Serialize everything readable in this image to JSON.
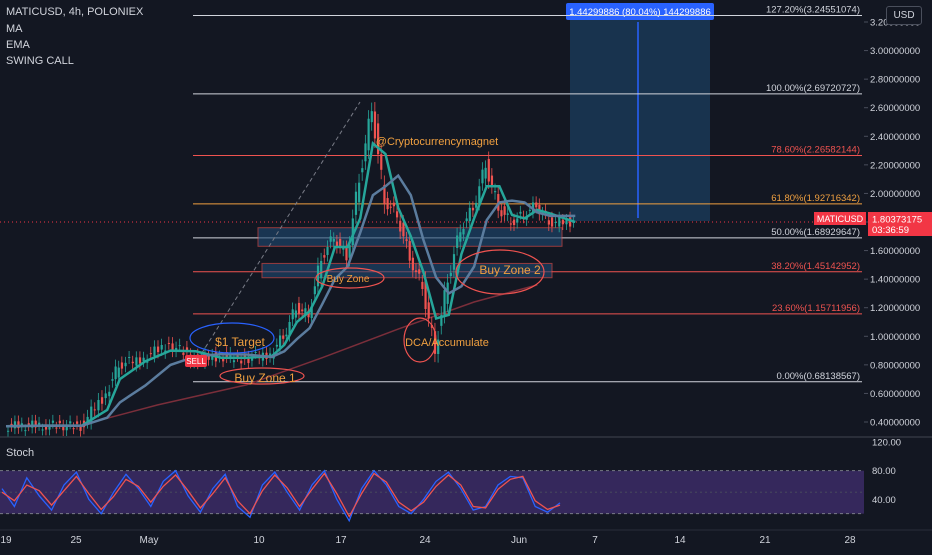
{
  "header": {
    "symbol_line": "MATICUSD, 4h, POLONIEX",
    "indicators": [
      "MA",
      "EMA",
      "SWING CALL"
    ]
  },
  "currency_button": "USD",
  "colors": {
    "background": "#131722",
    "up_candle": "#26a69a",
    "down_candle": "#ef5350",
    "ema_line": "#26a69a",
    "ma_line": "#5b7c9e",
    "long_ma": "#7a2e3a",
    "stoch_k": "#2962ff",
    "stoch_d": "#ef5350",
    "stoch_band": "#3a2a63",
    "fib_white": "#d1d4dc",
    "fib_red": "#ef5350",
    "fib_orange": "#f0a040",
    "zone_fill": "#1e4a73",
    "annotation": "#f0a040",
    "price_tag": "#f23645"
  },
  "chart_data": [
    {
      "type": "line",
      "title": "MATICUSD, 4h, POLONIEX",
      "ylabel": "USD",
      "scale": "linear",
      "ylim": [
        0.26,
        3.3
      ],
      "y_ticks": [
        "0.40000000",
        "0.60000000",
        "0.80000000",
        "1.00000000",
        "1.20000000",
        "1.40000000",
        "1.60000000",
        "1.80000000",
        "2.00000000",
        "2.20000000",
        "2.40000000",
        "2.60000000",
        "2.80000000",
        "3.00000000",
        "3.20000000"
      ],
      "x_ticks": [
        "19",
        "25",
        "May",
        "10",
        "17",
        "24",
        "Jun",
        "7",
        "14",
        "21",
        "28"
      ],
      "price_path": [
        {
          "x": "2021-04-19",
          "y": 0.37
        },
        {
          "x": "2021-04-22",
          "y": 0.38
        },
        {
          "x": "2021-04-25",
          "y": 0.37
        },
        {
          "x": "2021-04-27",
          "y": 0.6
        },
        {
          "x": "2021-04-28",
          "y": 0.8
        },
        {
          "x": "2021-04-30",
          "y": 0.85
        },
        {
          "x": "2021-05-02",
          "y": 0.95
        },
        {
          "x": "2021-05-04",
          "y": 0.84
        },
        {
          "x": "2021-05-06",
          "y": 0.86
        },
        {
          "x": "2021-05-08",
          "y": 0.84
        },
        {
          "x": "2021-05-10",
          "y": 0.88
        },
        {
          "x": "2021-05-11",
          "y": 1.0
        },
        {
          "x": "2021-05-12",
          "y": 1.2
        },
        {
          "x": "2021-05-13",
          "y": 1.15
        },
        {
          "x": "2021-05-14",
          "y": 1.55
        },
        {
          "x": "2021-05-15",
          "y": 1.7
        },
        {
          "x": "2021-05-16",
          "y": 1.55
        },
        {
          "x": "2021-05-17",
          "y": 2.1
        },
        {
          "x": "2021-05-18",
          "y": 2.6
        },
        {
          "x": "2021-05-19",
          "y": 1.95
        },
        {
          "x": "2021-05-20",
          "y": 1.85
        },
        {
          "x": "2021-05-21",
          "y": 1.55
        },
        {
          "x": "2021-05-22",
          "y": 1.35
        },
        {
          "x": "2021-05-23",
          "y": 0.9
        },
        {
          "x": "2021-05-24",
          "y": 1.4
        },
        {
          "x": "2021-05-25",
          "y": 1.75
        },
        {
          "x": "2021-05-26",
          "y": 1.9
        },
        {
          "x": "2021-05-27",
          "y": 2.2
        },
        {
          "x": "2021-05-28",
          "y": 1.9
        },
        {
          "x": "2021-05-29",
          "y": 1.8
        },
        {
          "x": "2021-05-30",
          "y": 1.85
        },
        {
          "x": "2021-05-31",
          "y": 1.92
        },
        {
          "x": "2021-06-01",
          "y": 1.8
        },
        {
          "x": "2021-06-03",
          "y": 1.8
        }
      ],
      "fib_levels": [
        {
          "ratio": "0.00%",
          "value": 0.68138567,
          "label": "0.00%(0.68138567)",
          "color": "#d1d4dc"
        },
        {
          "ratio": "23.60%",
          "value": 1.15711956,
          "label": "23.60%(1.15711956)",
          "color": "#ef5350"
        },
        {
          "ratio": "38.20%",
          "value": 1.45142952,
          "label": "38.20%(1.45142952)",
          "color": "#ef5350"
        },
        {
          "ratio": "50.00%",
          "value": 1.68929647,
          "label": "50.00%(1.68929647)",
          "color": "#d1d4dc"
        },
        {
          "ratio": "61.80%",
          "value": 1.92716342,
          "label": "61.80%(1.92716342)",
          "color": "#f0a040"
        },
        {
          "ratio": "78.60%",
          "value": 2.26582144,
          "label": "78.60%(2.26582144)",
          "color": "#ef5350"
        },
        {
          "ratio": "100.00%",
          "value": 2.69720727,
          "label": "100.00%(2.69720727)",
          "color": "#d1d4dc"
        },
        {
          "ratio": "127.20%",
          "value": 3.24551074,
          "label": "127.20%(3.24551074)",
          "color": "#d1d4dc"
        }
      ],
      "current_price": {
        "symbol": "MATICUSD",
        "value": "1.80373175",
        "countdown": "03:36:59"
      },
      "measure_label": "1.44299886 (80.04%) 144299886",
      "annotations": [
        "@Cryptocurrencymagnet",
        "Buy Zone",
        "Buy Zone 2",
        "$1 Target",
        "Buy Zone 1",
        "DCA/Accumulate",
        "SELL"
      ]
    },
    {
      "type": "line",
      "title": "Stoch",
      "ylim": [
        0,
        120
      ],
      "y_ticks": [
        "120.00",
        "80.00",
        "40.00"
      ],
      "bands": [
        20,
        80
      ],
      "series": [
        {
          "color": "#2962ff",
          "values": [
            55,
            30,
            70,
            45,
            25,
            60,
            78,
            40,
            20,
            50,
            75,
            55,
            30,
            65,
            80,
            45,
            22,
            55,
            75,
            30,
            15,
            60,
            78,
            50,
            25,
            60,
            80,
            40,
            10,
            55,
            80,
            60,
            30,
            20,
            40,
            65,
            78,
            55,
            25,
            30,
            60,
            72,
            70,
            30,
            22,
            35
          ]
        },
        {
          "color": "#ef5350",
          "values": [
            50,
            38,
            60,
            52,
            32,
            52,
            72,
            48,
            26,
            44,
            68,
            58,
            36,
            58,
            74,
            52,
            28,
            48,
            70,
            38,
            20,
            52,
            74,
            56,
            30,
            54,
            76,
            48,
            16,
            48,
            76,
            64,
            36,
            24,
            36,
            58,
            74,
            60,
            30,
            28,
            54,
            68,
            72,
            38,
            26,
            32
          ]
        }
      ]
    }
  ]
}
